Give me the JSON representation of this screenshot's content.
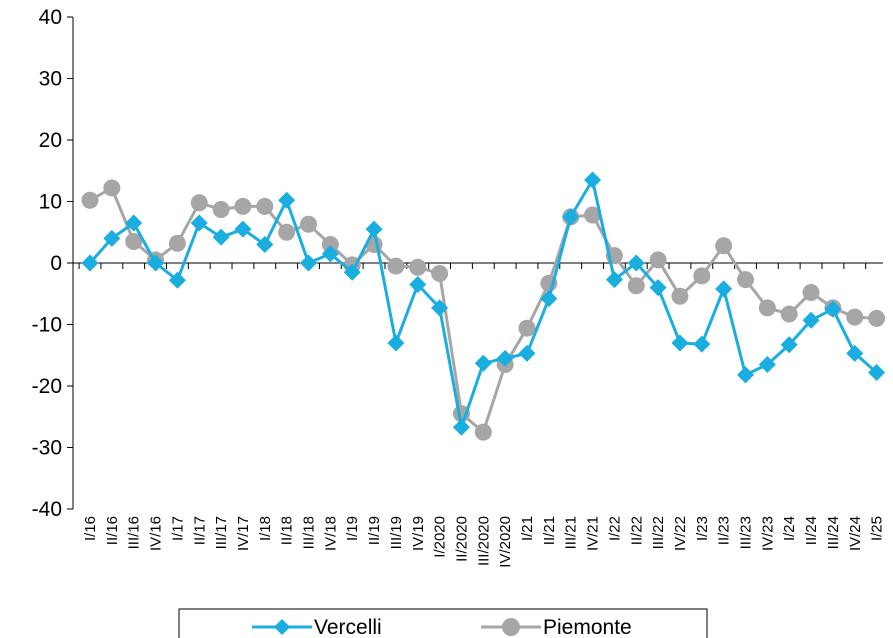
{
  "chart_data": {
    "type": "line",
    "title": "",
    "xlabel": "",
    "ylabel": "",
    "ylim": [
      -40,
      40
    ],
    "yticks": [
      -40,
      -30,
      -20,
      -10,
      0,
      10,
      20,
      30,
      40
    ],
    "grid": false,
    "legend_position": "bottom",
    "categories": [
      "I/16",
      "II/16",
      "III/16",
      "IV/16",
      "I/17",
      "II/17",
      "III/17",
      "IV/17",
      "I/18",
      "II/18",
      "III/18",
      "IV/18",
      "I/19",
      "II/19",
      "III/19",
      "IV/19",
      "I/2020",
      "II/2020",
      "III/2020",
      "IV/2020",
      "I/21",
      "II/21",
      "III/21",
      "IV/21",
      "I/22",
      "II/22",
      "III/22",
      "IV/22",
      "I/23",
      "II/23",
      "III/23",
      "IV/23",
      "I/24",
      "II/24",
      "III/24",
      "IV/24",
      "I/25"
    ],
    "series": [
      {
        "name": "Vercelli",
        "color": "#1aaee0",
        "marker": "diamond",
        "values": [
          0.0,
          4.0,
          6.5,
          0.0,
          -2.8,
          6.5,
          4.2,
          5.5,
          3.0,
          10.2,
          0.0,
          1.5,
          -1.5,
          5.5,
          -13.0,
          -3.5,
          -7.3,
          -26.7,
          -16.3,
          -15.5,
          -14.7,
          -5.8,
          7.5,
          13.5,
          -2.7,
          0.0,
          -4.0,
          -13.0,
          -13.2,
          -4.2,
          -18.2,
          -16.5,
          -13.3,
          -9.3,
          -7.5,
          -14.7,
          -17.8
        ]
      },
      {
        "name": "Piemonte",
        "color": "#a6a6a6",
        "marker": "circle",
        "values": [
          10.2,
          12.2,
          3.5,
          0.5,
          3.2,
          9.8,
          8.7,
          9.2,
          9.2,
          5.0,
          6.3,
          3.0,
          -0.3,
          3.0,
          -0.5,
          -0.7,
          -1.7,
          -24.5,
          -27.5,
          -16.5,
          -10.6,
          -3.3,
          7.5,
          7.8,
          1.2,
          -3.7,
          0.5,
          -5.4,
          -2.1,
          2.8,
          -2.7,
          -7.3,
          -8.3,
          -4.8,
          -7.3,
          -8.8,
          -9.0
        ]
      }
    ]
  }
}
